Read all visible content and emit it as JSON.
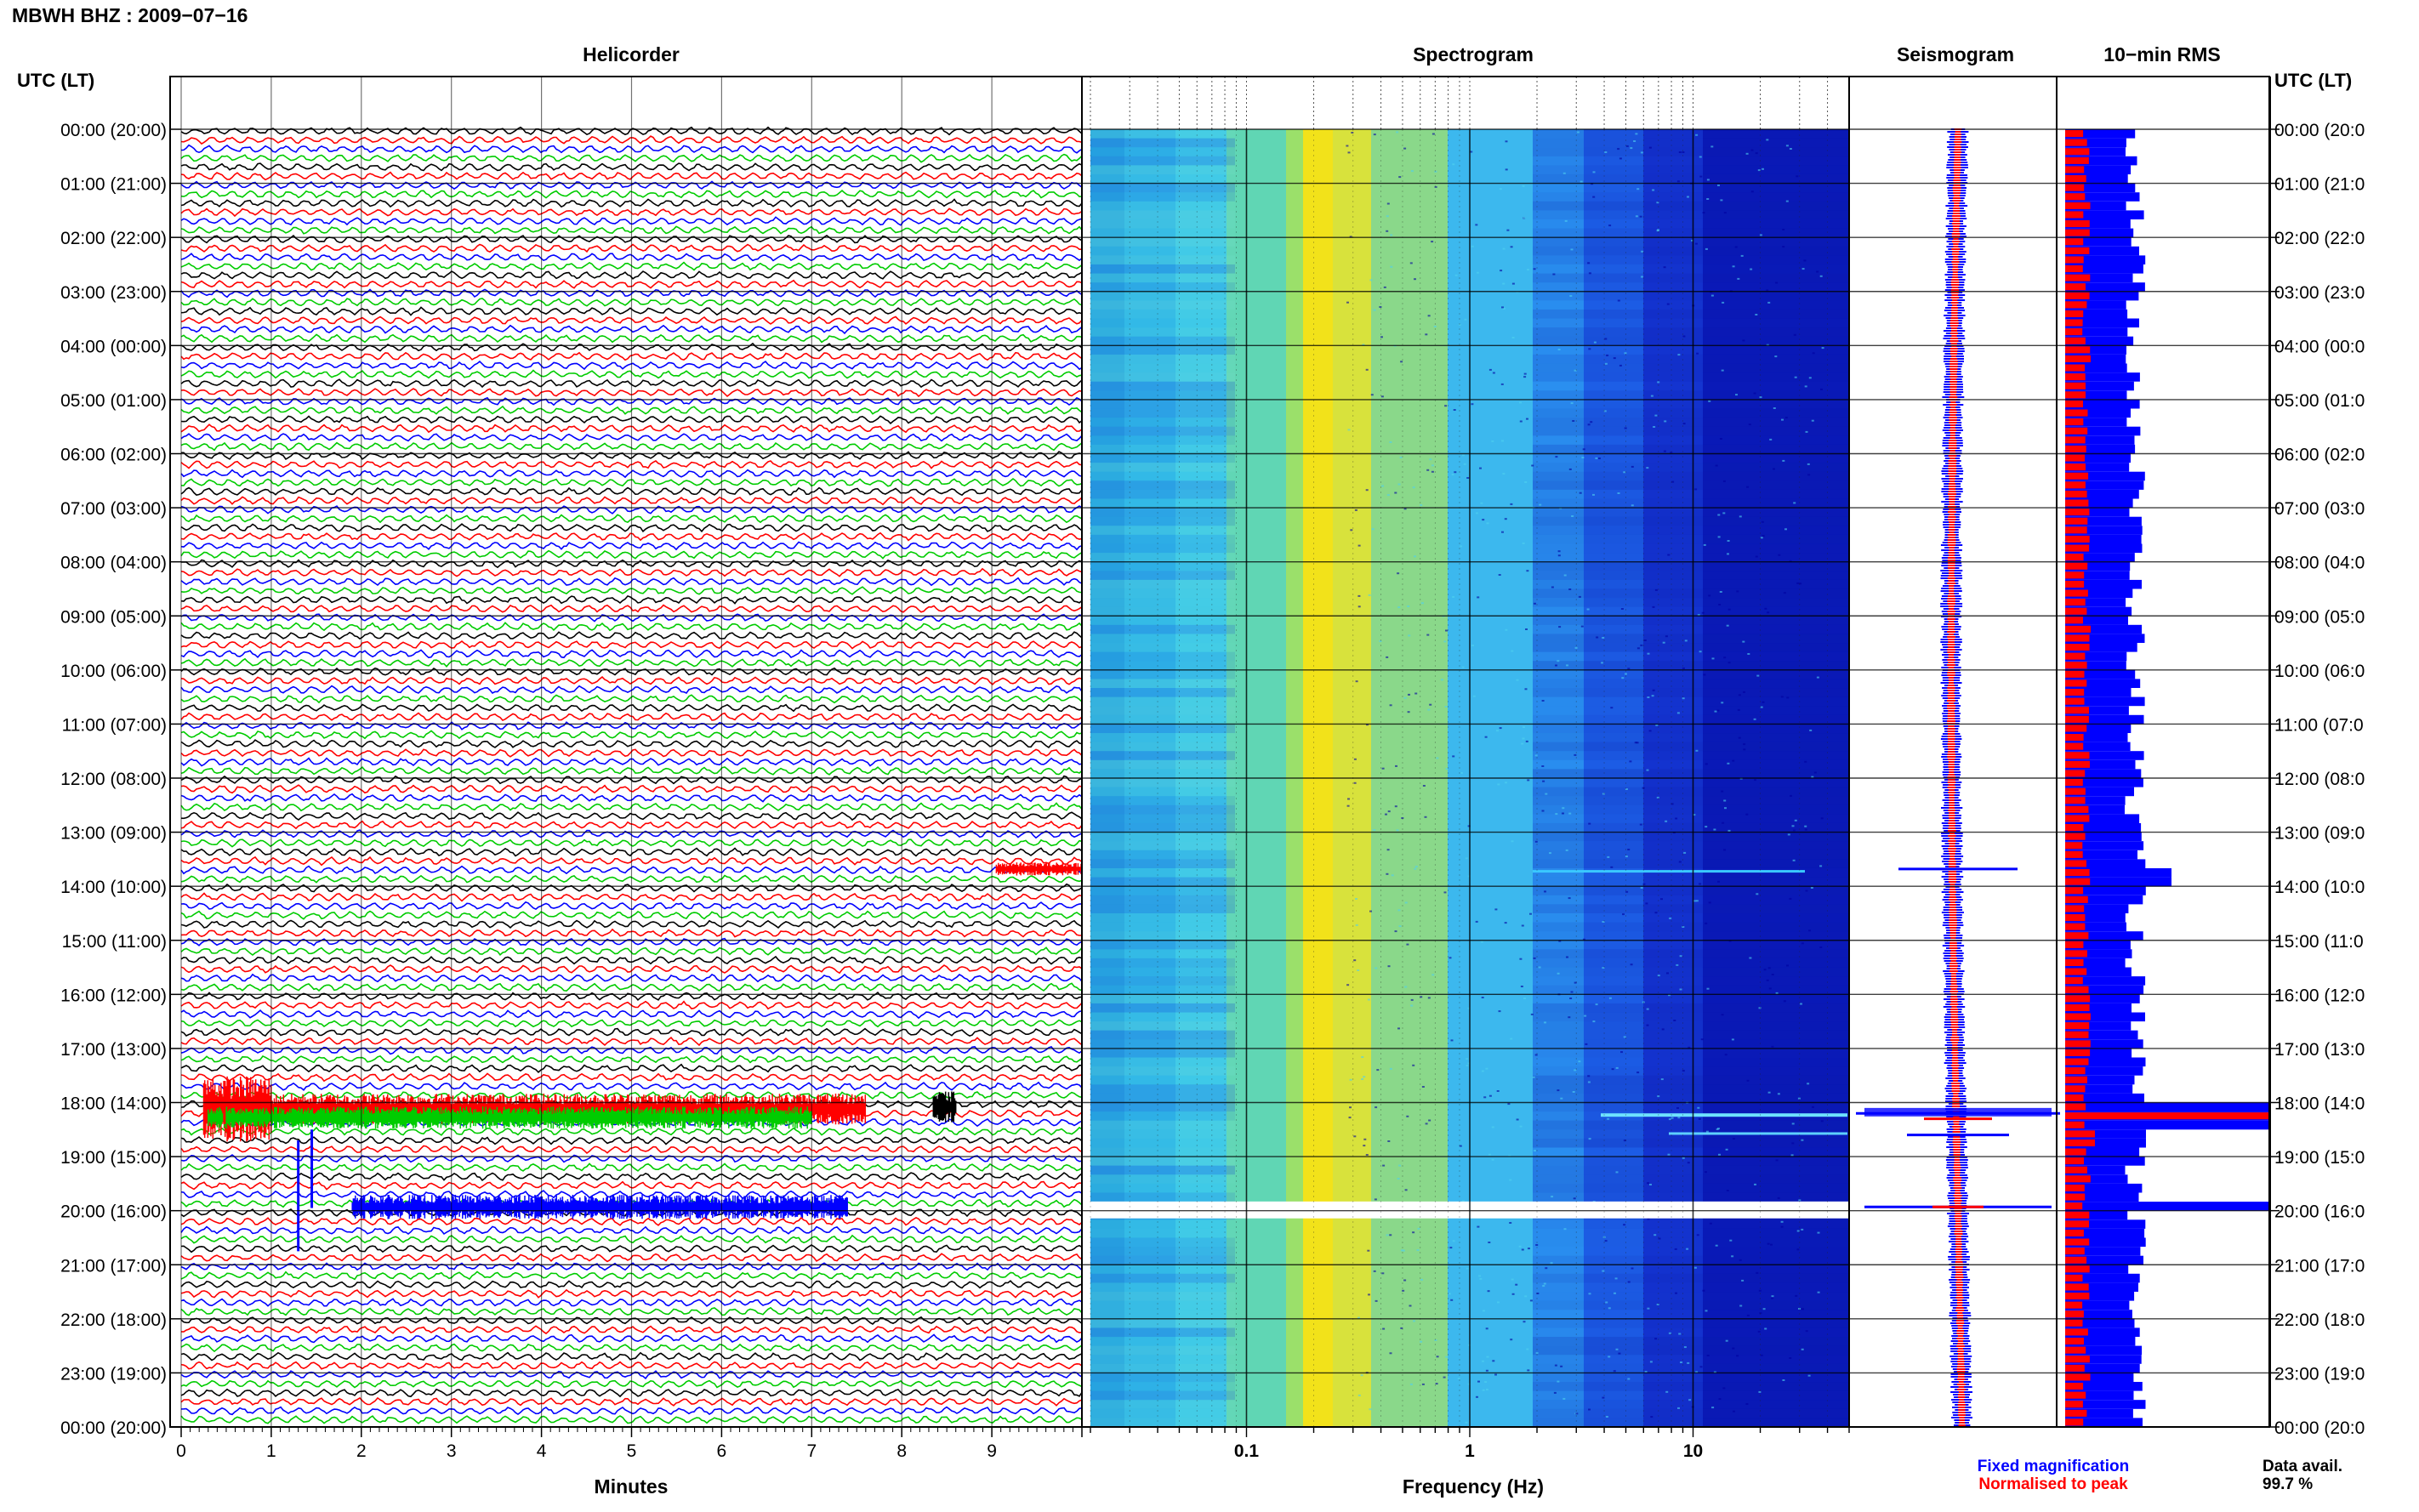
{
  "header": {
    "station": "MBWH BHZ : 2009−07−16",
    "utc_label_left": "UTC (LT)",
    "utc_label_right": "UTC (LT)"
  },
  "panels": {
    "helicorder": "Helicorder",
    "spectrogram": "Spectrogram",
    "seismogram": "Seismogram",
    "rms": "10−min RMS"
  },
  "hour_labels": [
    "00:00 (20:00)",
    "01:00 (21:00)",
    "02:00 (22:00)",
    "03:00 (23:00)",
    "04:00 (00:00)",
    "05:00 (01:00)",
    "06:00 (02:00)",
    "07:00 (03:00)",
    "08:00 (04:00)",
    "09:00 (05:00)",
    "10:00 (06:00)",
    "11:00 (07:00)",
    "12:00 (08:00)",
    "13:00 (09:00)",
    "14:00 (10:00)",
    "15:00 (11:00)",
    "16:00 (12:00)",
    "17:00 (13:00)",
    "18:00 (14:00)",
    "19:00 (15:00)",
    "20:00 (16:00)",
    "21:00 (17:00)",
    "22:00 (18:00)",
    "23:00 (19:00)",
    "00:00 (20:00)"
  ],
  "right_hour_labels": [
    "00:00 (20:0",
    "01:00 (21:0",
    "02:00 (22:0",
    "03:00 (23:0",
    "04:00 (00:0",
    "05:00 (01:0",
    "06:00 (02:0",
    "07:00 (03:0",
    "08:00 (04:0",
    "09:00 (05:0",
    "10:00 (06:0",
    "11:00 (07:0",
    "12:00 (08:0",
    "13:00 (09:0",
    "14:00 (10:0",
    "15:00 (11:0",
    "16:00 (12:0",
    "17:00 (13:0",
    "18:00 (14:0",
    "19:00 (15:0",
    "20:00 (16:0",
    "21:00 (17:0",
    "22:00 (18:0",
    "23:00 (19:0",
    "00:00 (20:0"
  ],
  "helicorder_axis": {
    "xlabel": "Minutes",
    "ticks": [
      "0",
      "1",
      "2",
      "3",
      "4",
      "5",
      "6",
      "7",
      "8",
      "9"
    ]
  },
  "spectrogram_axis": {
    "xlabel": "Frequency (Hz)",
    "ticks": [
      "0.1",
      "1",
      "10"
    ]
  },
  "legend": {
    "fixed": "Fixed magnification",
    "normalised": "Normalised to peak",
    "fixed_color": "#0000ff",
    "normalised_color": "#ff0000"
  },
  "availability": {
    "label": "Data avail.",
    "value": "99.7 %"
  },
  "colors": {
    "trace_cycle": [
      "#000000",
      "#ff0000",
      "#0000ff",
      "#00cc00"
    ],
    "spec_low": "#0a14c8",
    "spec_high": "#ff3a00"
  },
  "chart_data": [
    {
      "type": "line",
      "name": "helicorder",
      "title": "Helicorder",
      "xlabel": "Minutes",
      "xlim": [
        0,
        10
      ],
      "lines_per_hour": 6,
      "hours": 24,
      "events": [
        {
          "utc": "13:40",
          "start_min": 9.0,
          "end_min": 10.0,
          "color": "red"
        },
        {
          "utc": "18:00",
          "start_min": 0.2,
          "end_min": 7.6,
          "color": "red"
        },
        {
          "utc": "18:10",
          "start_min": 0.2,
          "end_min": 7.0,
          "color": "green"
        },
        {
          "utc": "18:00",
          "start_min": 8.3,
          "end_min": 8.6,
          "color": "black"
        },
        {
          "utc": "19:40",
          "start_min": 1.8,
          "end_min": 7.4,
          "color": "blue"
        }
      ]
    },
    {
      "type": "heatmap",
      "name": "spectrogram",
      "title": "Spectrogram",
      "xlabel": "Frequency (Hz)",
      "xscale": "log",
      "xlim": [
        0.02,
        50
      ],
      "peak_band_hz": [
        0.2,
        0.3
      ],
      "gap_utc": [
        "19:50",
        "20:00"
      ]
    },
    {
      "type": "line",
      "name": "seismogram",
      "title": "Seismogram",
      "series": [
        {
          "name": "Fixed magnification"
        },
        {
          "name": "Normalised to peak"
        }
      ]
    },
    {
      "type": "bar",
      "name": "rms",
      "title": "10−min RMS",
      "series": [
        {
          "name": "Fixed magnification"
        },
        {
          "name": "Normalised to peak"
        }
      ],
      "peaks_utc": [
        "18:10",
        "19:40"
      ]
    }
  ]
}
